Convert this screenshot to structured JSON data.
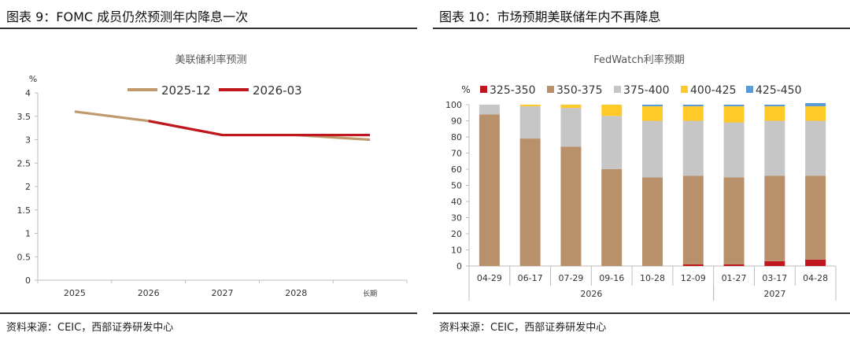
{
  "left": {
    "figure_title": "图表 9：FOMC 成员仍然预测年内降息一次",
    "source": "资料来源：CEIC，西部证券研发中心"
  },
  "right": {
    "figure_title": "图表 10：市场预期美联储年内不再降息",
    "source": "资料来源：CEIC，西部证券研发中心"
  },
  "chart_data": [
    {
      "type": "line",
      "title": "美联储利率预测",
      "ylabel": "%",
      "xlabel": "",
      "categories": [
        "2025",
        "2026",
        "2027",
        "2028",
        "长期"
      ],
      "ylim": [
        0,
        4
      ],
      "yticks": [
        "0",
        "0.5",
        "1",
        "1.5",
        "2",
        "2.5",
        "3",
        "3.5",
        "4"
      ],
      "grid": false,
      "legend": "top",
      "series": [
        {
          "name": "2025-12",
          "color": "#C09A6B",
          "values": [
            3.6,
            3.4,
            3.1,
            3.1,
            3.0
          ]
        },
        {
          "name": "2026-03",
          "color": "#C0161D",
          "values": [
            null,
            3.4,
            3.1,
            3.1,
            3.1
          ]
        }
      ]
    },
    {
      "type": "bar",
      "stacked": true,
      "title": "FedWatch利率预期",
      "ylabel": "%",
      "xlabel": "",
      "categories": [
        "04-29",
        "06-17",
        "07-29",
        "09-16",
        "10-28",
        "12-09",
        "01-27",
        "03-17",
        "04-28"
      ],
      "year_groups": [
        {
          "label": "2026",
          "count": 6
        },
        {
          "label": "2027",
          "count": 3
        }
      ],
      "ylim": [
        0,
        100
      ],
      "yticks": [
        "0",
        "10",
        "20",
        "30",
        "40",
        "50",
        "60",
        "70",
        "80",
        "90",
        "100"
      ],
      "grid": false,
      "legend": "top",
      "series": [
        {
          "name": "325-350",
          "color": "#C0161D",
          "values": [
            0,
            0,
            0,
            0,
            0,
            1,
            1,
            3,
            4
          ]
        },
        {
          "name": "350-375",
          "color": "#B8906A",
          "values": [
            94,
            79,
            74,
            60,
            55,
            55,
            54,
            53,
            52
          ]
        },
        {
          "name": "375-400",
          "color": "#C6C6C6",
          "values": [
            6,
            20,
            24,
            33,
            35,
            34,
            34,
            34,
            34
          ]
        },
        {
          "name": "400-425",
          "color": "#FFCA28",
          "values": [
            0,
            1,
            2,
            7,
            9,
            9,
            10,
            9,
            9
          ]
        },
        {
          "name": "425-450",
          "color": "#5B9BD5",
          "values": [
            0,
            0,
            0,
            0,
            1,
            1,
            1,
            1,
            2
          ]
        }
      ]
    }
  ]
}
